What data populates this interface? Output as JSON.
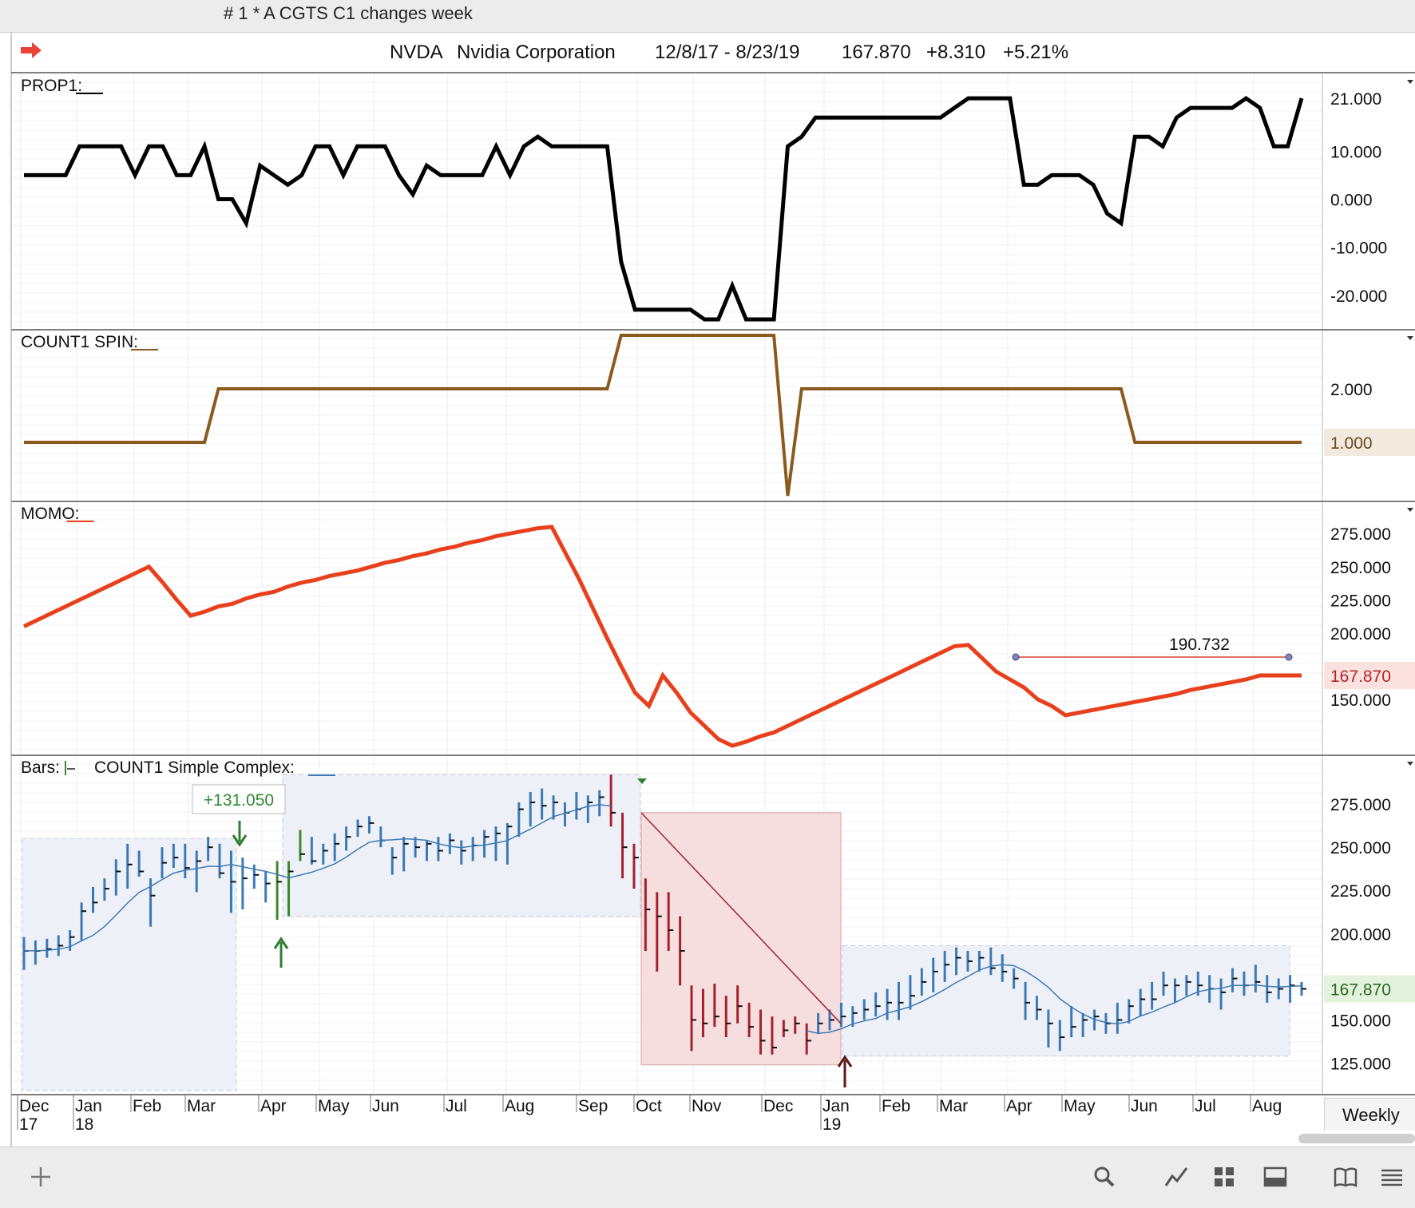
{
  "window": {
    "title": "# 1 * A CGTS  C1 changes week"
  },
  "header": {
    "symbol": "NVDA",
    "name": "Nvidia Corporation",
    "range": "12/8/17 - 8/23/19",
    "last": "167.870",
    "change": "+8.310",
    "pct": "+5.21%"
  },
  "timeframe": "Weekly",
  "icons": [
    "red-arrow-icon",
    "plus-icon",
    "search-icon",
    "line-chart-icon",
    "grid-icon",
    "panel-layout-icon",
    "book-icon",
    "menu-icon"
  ],
  "colors": {
    "prop1": "#000000",
    "spin": "#8b5a1e",
    "momo": "#e8401c",
    "up": "#3d7ab5",
    "down": "#a3222e",
    "signal": "#3b8a2a"
  },
  "chart_data": [
    {
      "type": "line",
      "label": "PROP1:",
      "series": [
        {
          "values": [
            5,
            5,
            5,
            5,
            11,
            11,
            11,
            11,
            5,
            11,
            11,
            5,
            5,
            11,
            0,
            0,
            -5,
            7,
            5,
            3,
            5,
            11,
            11,
            5,
            11,
            11,
            11,
            5,
            1,
            7,
            5,
            5,
            5,
            5,
            11,
            5,
            11,
            13,
            11,
            11,
            11,
            11,
            11,
            -13,
            -23,
            -23,
            -23,
            -23,
            -23,
            -25,
            -25,
            -18,
            -25,
            -25,
            -25,
            11,
            13,
            17,
            17,
            17,
            17,
            17,
            17,
            17,
            17,
            17,
            17,
            19,
            21,
            21,
            21,
            21,
            3,
            3,
            5,
            5,
            5,
            3,
            -3,
            -5,
            13,
            13,
            11,
            17,
            19,
            19,
            19,
            19,
            21,
            19,
            11,
            11,
            21
          ]
        }
      ],
      "yticks": [
        "21.000",
        "10.000",
        "0.000",
        "-10.000",
        "-20.000"
      ],
      "ylim": [
        -26,
        25
      ]
    },
    {
      "type": "line",
      "label": "COUNT1 SPIN:",
      "series": [
        {
          "values": [
            1,
            1,
            1,
            1,
            1,
            1,
            1,
            1,
            1,
            1,
            1,
            1,
            1,
            1,
            2,
            2,
            2,
            2,
            2,
            2,
            2,
            2,
            2,
            2,
            2,
            2,
            2,
            2,
            2,
            2,
            2,
            2,
            2,
            2,
            2,
            2,
            2,
            2,
            2,
            2,
            2,
            2,
            2,
            3,
            3,
            3,
            3,
            3,
            3,
            3,
            3,
            3,
            3,
            3,
            3,
            0,
            2,
            2,
            2,
            2,
            2,
            2,
            2,
            2,
            2,
            2,
            2,
            2,
            2,
            2,
            2,
            2,
            2,
            2,
            2,
            2,
            2,
            2,
            2,
            2,
            1,
            1,
            1,
            1,
            1,
            1,
            1,
            1,
            1,
            1,
            1,
            1,
            1
          ]
        }
      ],
      "yticks": [
        "2.000",
        "1.000"
      ],
      "last_label": "1.000",
      "ylim": [
        0,
        3
      ]
    },
    {
      "type": "line",
      "label": "MOMO:",
      "series": [
        {
          "values": [
            205,
            210,
            215,
            220,
            225,
            230,
            235,
            240,
            245,
            250,
            238,
            225,
            213,
            216,
            220,
            222,
            226,
            229,
            231,
            235,
            238,
            240,
            243,
            245,
            247,
            250,
            253,
            255,
            258,
            260,
            263,
            265,
            268,
            270,
            273,
            275,
            277,
            279,
            280,
            260,
            240,
            218,
            196,
            175,
            155,
            145,
            168,
            155,
            140,
            130,
            120,
            115,
            118,
            122,
            125,
            130,
            135,
            140,
            145,
            150,
            155,
            160,
            165,
            170,
            175,
            180,
            185,
            190,
            191,
            181,
            171,
            165,
            159,
            150,
            145,
            138,
            140,
            142,
            144,
            146,
            148,
            150,
            152,
            154,
            157,
            159,
            161,
            163,
            165,
            168,
            168,
            168,
            168
          ]
        }
      ],
      "annotation": "190.732",
      "yticks": [
        "275.000",
        "250.000",
        "225.000",
        "200.000",
        "150.000"
      ],
      "last_label": "167.870",
      "ylim": [
        112,
        295
      ]
    },
    {
      "type": "bar",
      "label": "Bars:",
      "label2": "COUNT1 Simple Complex:",
      "bars_hlc": [
        [
          198,
          179,
          190
        ],
        [
          196,
          182,
          190
        ],
        [
          197,
          186,
          191
        ],
        [
          199,
          187,
          193
        ],
        [
          202,
          190,
          198
        ],
        [
          218,
          196,
          213
        ],
        [
          227,
          212,
          218
        ],
        [
          232,
          219,
          226
        ],
        [
          243,
          222,
          236
        ],
        [
          252,
          226,
          240
        ],
        [
          248,
          233,
          236
        ],
        [
          232,
          204,
          222
        ],
        [
          250,
          232,
          241
        ],
        [
          252,
          238,
          244
        ],
        [
          252,
          232,
          238
        ],
        [
          248,
          224,
          242
        ],
        [
          256,
          242,
          250
        ],
        [
          252,
          232,
          235
        ],
        [
          248,
          212,
          230
        ],
        [
          244,
          214,
          232
        ],
        [
          240,
          226,
          234
        ],
        [
          236,
          218,
          229
        ],
        [
          242,
          208,
          230
        ],
        [
          242,
          210,
          236
        ],
        [
          260,
          242,
          246
        ],
        [
          256,
          240,
          242
        ],
        [
          252,
          240,
          248
        ],
        [
          258,
          242,
          252
        ],
        [
          262,
          248,
          256
        ],
        [
          266,
          256,
          262
        ],
        [
          268,
          258,
          264
        ],
        [
          262,
          250,
          254
        ],
        [
          250,
          234,
          244
        ],
        [
          256,
          236,
          252
        ],
        [
          256,
          244,
          250
        ],
        [
          254,
          242,
          252
        ],
        [
          256,
          242,
          248
        ],
        [
          258,
          246,
          254
        ],
        [
          254,
          240,
          248
        ],
        [
          256,
          242,
          251
        ],
        [
          260,
          244,
          256
        ],
        [
          262,
          242,
          258
        ],
        [
          264,
          240,
          262
        ],
        [
          276,
          256,
          272
        ],
        [
          282,
          262,
          276
        ],
        [
          284,
          266,
          274
        ],
        [
          280,
          266,
          276
        ],
        [
          276,
          262,
          270
        ],
        [
          282,
          266,
          272
        ],
        [
          280,
          264,
          276
        ],
        [
          283,
          268,
          279
        ],
        [
          292,
          262,
          270
        ],
        [
          270,
          232,
          250
        ],
        [
          252,
          226,
          244
        ],
        [
          232,
          190,
          214
        ],
        [
          224,
          178,
          210
        ],
        [
          224,
          190,
          202
        ],
        [
          210,
          170,
          190
        ],
        [
          170,
          132,
          150
        ],
        [
          168,
          140,
          148
        ],
        [
          171,
          146,
          152
        ],
        [
          164,
          140,
          148
        ],
        [
          170,
          148,
          158
        ],
        [
          160,
          140,
          146
        ],
        [
          156,
          130,
          138
        ],
        [
          152,
          130,
          134
        ],
        [
          150,
          140,
          144
        ],
        [
          152,
          142,
          148
        ],
        [
          148,
          130,
          138
        ],
        [
          154,
          142,
          148
        ],
        [
          156,
          144,
          150
        ],
        [
          160,
          146,
          152
        ],
        [
          158,
          146,
          154
        ],
        [
          162,
          150,
          156
        ],
        [
          166,
          152,
          158
        ],
        [
          168,
          150,
          160
        ],
        [
          172,
          150,
          160
        ],
        [
          176,
          156,
          164
        ],
        [
          180,
          164,
          172
        ],
        [
          186,
          166,
          178
        ],
        [
          190,
          172,
          182
        ],
        [
          192,
          176,
          186
        ],
        [
          190,
          178,
          184
        ],
        [
          190,
          178,
          186
        ],
        [
          192,
          176,
          180
        ],
        [
          188,
          172,
          178
        ],
        [
          180,
          168,
          174
        ],
        [
          172,
          150,
          160
        ],
        [
          164,
          150,
          156
        ],
        [
          156,
          134,
          148
        ],
        [
          150,
          132,
          140
        ],
        [
          158,
          140,
          146
        ],
        [
          154,
          140,
          150
        ],
        [
          156,
          144,
          152
        ],
        [
          154,
          142,
          148
        ],
        [
          160,
          142,
          150
        ],
        [
          162,
          148,
          158
        ],
        [
          168,
          152,
          162
        ],
        [
          172,
          156,
          162
        ],
        [
          178,
          164,
          170
        ],
        [
          174,
          160,
          170
        ],
        [
          176,
          164,
          172
        ],
        [
          178,
          164,
          170
        ],
        [
          176,
          160,
          168
        ],
        [
          174,
          156,
          166
        ],
        [
          180,
          166,
          174
        ],
        [
          178,
          164,
          170
        ],
        [
          182,
          166,
          172
        ],
        [
          176,
          160,
          166
        ],
        [
          174,
          162,
          168
        ],
        [
          176,
          160,
          170
        ],
        [
          172,
          164,
          168
        ]
      ],
      "signal_label": "+131.050",
      "yticks": [
        "275.000",
        "250.000",
        "225.000",
        "200.000",
        "150.000",
        "125.000"
      ],
      "last_label": "167.870",
      "ylim": [
        110,
        300
      ]
    }
  ],
  "xaxis": {
    "months": [
      "Dec",
      "Jan",
      "Feb",
      "Mar",
      "Apr",
      "May",
      "Jun",
      "Jul",
      "Aug",
      "Sep",
      "Oct",
      "Nov",
      "Dec",
      "Jan",
      "Feb",
      "Mar",
      "Apr",
      "May",
      "Jun",
      "Jul",
      "Aug"
    ],
    "years": [
      {
        "label": "17",
        "at": 0
      },
      {
        "label": "18",
        "at": 1
      },
      {
        "label": "19",
        "at": 13
      }
    ]
  }
}
